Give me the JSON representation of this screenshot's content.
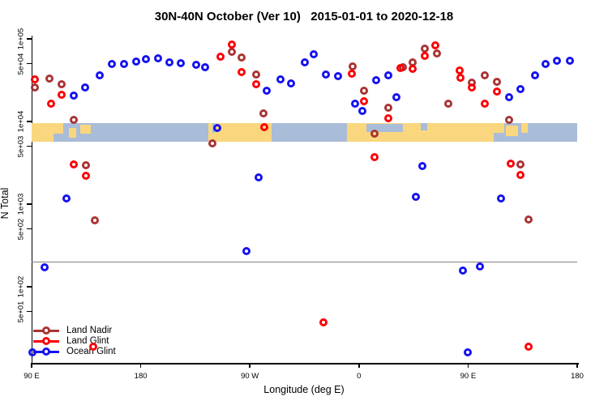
{
  "title": "30N-40N October (Ver 10)   2015-01-01 to 2020-12-18",
  "chart_data": {
    "type": "scatter",
    "xlabel": "Longitude (deg E)",
    "ylabel": "N Total",
    "y_scale": "log10",
    "grid": false,
    "x_axis_deg_span": [
      90,
      540
    ],
    "x_ticks": [
      {
        "pos": 90,
        "label": "90 E"
      },
      {
        "pos": 180,
        "label": "180"
      },
      {
        "pos": 270,
        "label": "90 W"
      },
      {
        "pos": 360,
        "label": "0"
      },
      {
        "pos": 450,
        "label": "90 E"
      },
      {
        "pos": 540,
        "label": "180"
      }
    ],
    "y_ticks": [
      {
        "value": 100000,
        "label": "1e+05"
      },
      {
        "value": 50000,
        "label": "5e+04"
      },
      {
        "value": 10000,
        "label": "1e+04"
      },
      {
        "value": 5000,
        "label": "5e+03"
      },
      {
        "value": 1000,
        "label": "1e+03"
      },
      {
        "value": 500,
        "label": "5e+02"
      },
      {
        "value": 100,
        "label": "1e+02"
      },
      {
        "value": 50,
        "label": "5e+01"
      }
    ],
    "reference_line_value": 200,
    "legend": [
      {
        "label": "Land Nadir",
        "color": "#a93434"
      },
      {
        "label": "Land Glint",
        "color": "#fb0006"
      },
      {
        "label": "Ocean Glint",
        "color": "#1512f0"
      }
    ],
    "series": [
      {
        "name": "Land Nadir",
        "color": "#a93434",
        "points": [
          [
            93,
            26000
          ],
          [
            105,
            33000
          ],
          [
            115,
            28000
          ],
          [
            125,
            10500
          ],
          [
            135,
            2950
          ],
          [
            142,
            640
          ],
          [
            239,
            5400
          ],
          [
            255,
            69000
          ],
          [
            263,
            60000
          ],
          [
            275,
            37000
          ],
          [
            281,
            12500
          ],
          [
            355,
            46000
          ],
          [
            364,
            23500
          ],
          [
            373,
            7100
          ],
          [
            384,
            14700
          ],
          [
            396,
            45000
          ],
          [
            404,
            52000
          ],
          [
            414,
            77000
          ],
          [
            424,
            66000
          ],
          [
            434,
            16500
          ],
          [
            453,
            29500
          ],
          [
            464,
            36000
          ],
          [
            474,
            30000
          ],
          [
            484,
            10500
          ],
          [
            493,
            3000
          ],
          [
            500,
            650
          ]
        ]
      },
      {
        "name": "Land Glint",
        "color": "#fb0006",
        "points": [
          [
            93,
            32000
          ],
          [
            106,
            16500
          ],
          [
            115,
            21000
          ],
          [
            125,
            3050
          ],
          [
            135,
            2200
          ],
          [
            141,
            19
          ],
          [
            246,
            61000
          ],
          [
            255,
            85000
          ],
          [
            263,
            40000
          ],
          [
            275,
            28000
          ],
          [
            282,
            8500
          ],
          [
            331,
            37
          ],
          [
            354,
            38000
          ],
          [
            364,
            17500
          ],
          [
            373,
            3700
          ],
          [
            384,
            11000
          ],
          [
            394,
            44000
          ],
          [
            404,
            43500
          ],
          [
            414,
            62000
          ],
          [
            423,
            84000
          ],
          [
            443,
            41500
          ],
          [
            444,
            34000
          ],
          [
            453,
            26000
          ],
          [
            464,
            16500
          ],
          [
            474,
            23000
          ],
          [
            485,
            3100
          ],
          [
            493,
            2250
          ],
          [
            500,
            19
          ]
        ]
      },
      {
        "name": "Ocean Glint",
        "color": "#1512f0",
        "points": [
          [
            91,
            16
          ],
          [
            101,
            170
          ],
          [
            119,
            1170
          ],
          [
            125,
            20500
          ],
          [
            134,
            26000
          ],
          [
            146,
            36000
          ],
          [
            156,
            50000
          ],
          [
            166,
            50000
          ],
          [
            176,
            53500
          ],
          [
            184,
            56500
          ],
          [
            194,
            58000
          ],
          [
            204,
            52000
          ],
          [
            213,
            51000
          ],
          [
            226,
            49000
          ],
          [
            233,
            45500
          ],
          [
            243,
            8400
          ],
          [
            267,
            270
          ],
          [
            277,
            2100
          ],
          [
            284,
            23500
          ],
          [
            295,
            32000
          ],
          [
            304,
            29000
          ],
          [
            315,
            52000
          ],
          [
            323,
            65000
          ],
          [
            333,
            37000
          ],
          [
            343,
            35500
          ],
          [
            357,
            16500
          ],
          [
            363,
            13500
          ],
          [
            374,
            31500
          ],
          [
            384,
            36500
          ],
          [
            391,
            19500
          ],
          [
            407,
            1230
          ],
          [
            412,
            2900
          ],
          [
            446,
            157
          ],
          [
            450,
            16
          ],
          [
            460,
            175
          ],
          [
            477,
            1170
          ],
          [
            484,
            19500
          ],
          [
            493,
            24500
          ],
          [
            505,
            36000
          ],
          [
            514,
            50000
          ],
          [
            523,
            54000
          ],
          [
            534,
            54000
          ]
        ]
      }
    ],
    "map_band": {
      "ocean_color": "#a9bcd8",
      "land_color": "#fad77e",
      "land_segments": [
        {
          "from": 90,
          "to": 116,
          "top": 0,
          "bot": 1
        },
        {
          "from": 121,
          "to": 127,
          "top": 0.25,
          "bot": 0.8
        },
        {
          "from": 130,
          "to": 139,
          "top": 0.1,
          "bot": 0.55
        },
        {
          "from": 236,
          "to": 288,
          "top": 0,
          "bot": 1
        },
        {
          "from": 350,
          "to": 480,
          "top": 0,
          "bot": 1
        },
        {
          "from": 481,
          "to": 491,
          "top": 0.15,
          "bot": 0.7
        },
        {
          "from": 494,
          "to": 499,
          "top": 0,
          "bot": 0.5
        }
      ],
      "sea_patches": [
        {
          "from": 108,
          "to": 116,
          "top": 0.55,
          "bot": 1
        },
        {
          "from": 239,
          "to": 241,
          "top": 0,
          "bot": 0.5
        },
        {
          "from": 366,
          "to": 396,
          "top": 0.05,
          "bot": 0.5
        },
        {
          "from": 411,
          "to": 416,
          "top": 0,
          "bot": 0.4
        },
        {
          "from": 471,
          "to": 480,
          "top": 0.5,
          "bot": 1
        }
      ]
    }
  }
}
